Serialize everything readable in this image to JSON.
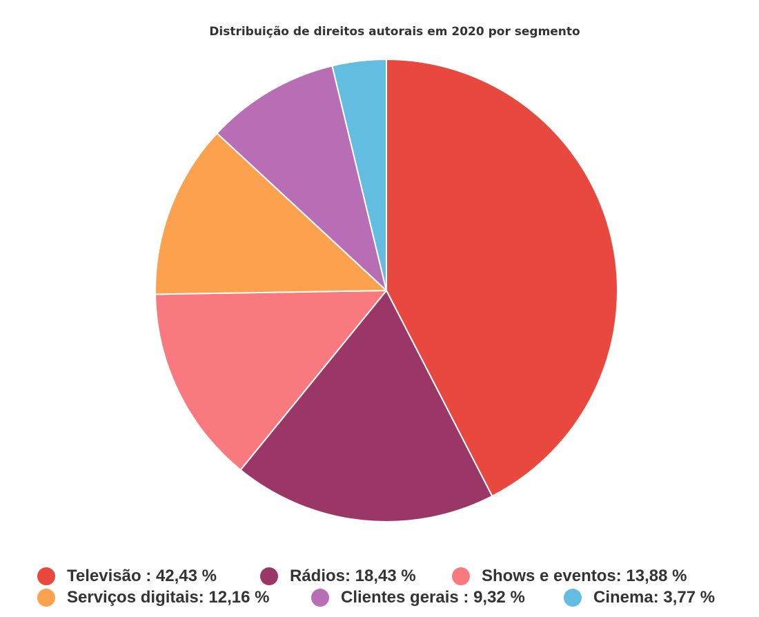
{
  "chart_data": {
    "type": "pie",
    "title": "Distribuição de direitos autorais em 2020 por segmento",
    "legend_position": "bottom",
    "slices": [
      {
        "name": "Televisão",
        "value": 42.43,
        "label": "Televisão : 42,43 %",
        "color": "#e8483e"
      },
      {
        "name": "Rádios",
        "value": 18.43,
        "label": "Rádios: 18,43 %",
        "color": "#9b3766"
      },
      {
        "name": "Shows e eventos",
        "value": 13.88,
        "label": "Shows e eventos: 13,88 %",
        "color": "#f87a7e"
      },
      {
        "name": "Serviços digitais",
        "value": 12.16,
        "label": "Serviços digitais: 12,16 %",
        "color": "#fca24f"
      },
      {
        "name": "Clientes gerais",
        "value": 9.32,
        "label": "Clientes gerais : 9,32 %",
        "color": "#b76eb4"
      },
      {
        "name": "Cinema",
        "value": 3.77,
        "label": "Cinema: 3,77 %",
        "color": "#62bde1"
      }
    ]
  }
}
